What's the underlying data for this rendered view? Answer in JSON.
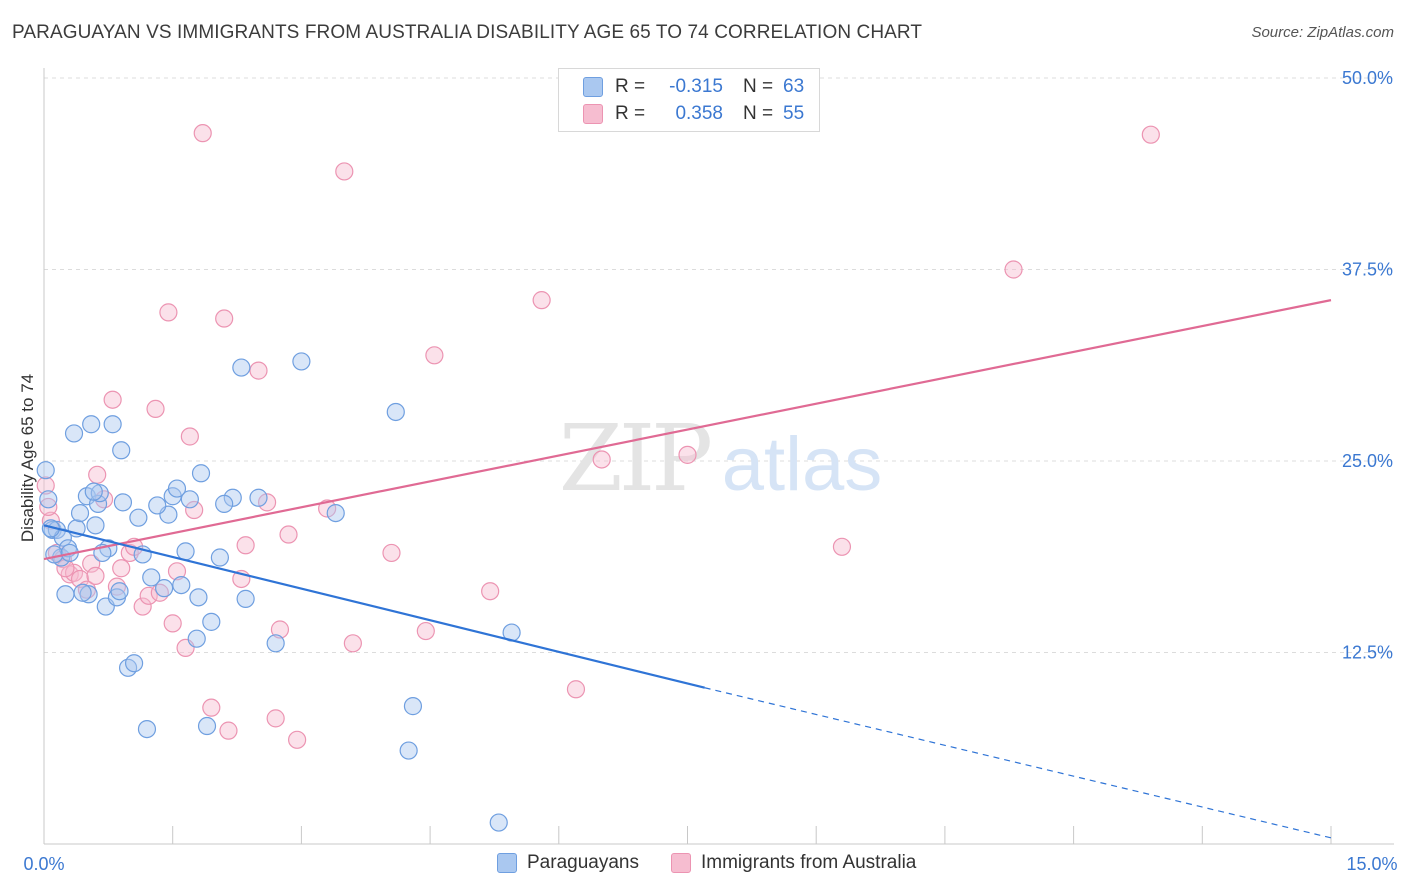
{
  "header": {
    "title": "PARAGUAYAN VS IMMIGRANTS FROM AUSTRALIA DISABILITY AGE 65 TO 74 CORRELATION CHART",
    "source": "Source: ZipAtlas.com"
  },
  "legend": {
    "r_label": "R =",
    "n_label": "N =",
    "series": [
      {
        "name": "Paraguayans",
        "r": "-0.315",
        "n": "63"
      },
      {
        "name": "Immigrants from Australia",
        "r": "0.358",
        "n": "55"
      }
    ]
  },
  "watermark": {
    "zip": "ZIP",
    "atlas": "atlas"
  },
  "colors": {
    "blue_fill": "#aac8f0",
    "blue_stroke": "#6f9fe0",
    "blue_line": "#2f74d6",
    "pink_fill": "#f6bdd0",
    "pink_stroke": "#ec94b2",
    "pink_line": "#e06a94",
    "axis_text": "#3b78d1",
    "grid": "#dcdcdc"
  },
  "chart_data": {
    "type": "scatter",
    "title": "PARAGUAYAN VS IMMIGRANTS FROM AUSTRALIA DISABILITY AGE 65 TO 74 CORRELATION CHART",
    "xlabel": "",
    "ylabel": "Disability Age 65 to 74",
    "xlim": [
      0,
      15
    ],
    "ylim": [
      0,
      50
    ],
    "x_tick_labels": [
      "0.0%",
      "15.0%"
    ],
    "y_ticks": [
      12.5,
      25.0,
      37.5,
      50.0
    ],
    "y_tick_labels": [
      "12.5%",
      "25.0%",
      "37.5%",
      "50.0%"
    ],
    "grid": true,
    "series": [
      {
        "name": "Paraguayans",
        "points": [
          [
            0.02,
            24.4
          ],
          [
            0.05,
            22.5
          ],
          [
            0.1,
            20.5
          ],
          [
            0.15,
            20.5
          ],
          [
            0.2,
            18.7
          ],
          [
            0.22,
            20.0
          ],
          [
            0.25,
            16.3
          ],
          [
            0.28,
            19.3
          ],
          [
            0.35,
            26.8
          ],
          [
            0.38,
            20.6
          ],
          [
            0.42,
            21.6
          ],
          [
            0.5,
            22.7
          ],
          [
            0.52,
            16.3
          ],
          [
            0.55,
            27.4
          ],
          [
            0.6,
            20.8
          ],
          [
            0.63,
            22.2
          ],
          [
            0.65,
            22.9
          ],
          [
            0.72,
            15.5
          ],
          [
            0.75,
            19.3
          ],
          [
            0.8,
            27.4
          ],
          [
            0.85,
            16.1
          ],
          [
            0.9,
            25.7
          ],
          [
            0.92,
            22.3
          ],
          [
            0.98,
            11.5
          ],
          [
            1.05,
            11.8
          ],
          [
            1.1,
            21.3
          ],
          [
            1.2,
            7.5
          ],
          [
            1.25,
            17.4
          ],
          [
            1.4,
            16.7
          ],
          [
            1.45,
            21.5
          ],
          [
            1.5,
            22.7
          ],
          [
            1.55,
            23.2
          ],
          [
            1.6,
            16.9
          ],
          [
            1.65,
            19.1
          ],
          [
            1.7,
            22.5
          ],
          [
            1.78,
            13.4
          ],
          [
            1.8,
            16.1
          ],
          [
            1.83,
            24.2
          ],
          [
            1.9,
            7.7
          ],
          [
            1.95,
            14.5
          ],
          [
            2.05,
            18.7
          ],
          [
            2.2,
            22.6
          ],
          [
            2.3,
            31.1
          ],
          [
            2.35,
            16.0
          ],
          [
            2.5,
            22.6
          ],
          [
            2.7,
            13.1
          ],
          [
            3.0,
            31.5
          ],
          [
            3.4,
            21.6
          ],
          [
            4.1,
            28.2
          ],
          [
            4.25,
            6.1
          ],
          [
            4.3,
            9.0
          ],
          [
            5.3,
            1.4
          ],
          [
            5.45,
            13.8
          ],
          [
            0.08,
            20.6
          ],
          [
            0.12,
            18.9
          ],
          [
            0.45,
            16.4
          ],
          [
            0.68,
            19.0
          ],
          [
            0.88,
            16.5
          ],
          [
            1.15,
            18.9
          ],
          [
            1.32,
            22.1
          ],
          [
            2.1,
            22.2
          ],
          [
            0.3,
            19.0
          ],
          [
            0.58,
            23.0
          ]
        ],
        "trend": {
          "x_start": 0,
          "y_start": 20.8,
          "x_solid_end": 7.7,
          "y_solid_end": 10.2,
          "x_dash_end": 15.0,
          "y_dash_end": 0.4
        }
      },
      {
        "name": "Immigrants from Australia",
        "points": [
          [
            0.02,
            23.4
          ],
          [
            0.08,
            21.1
          ],
          [
            0.15,
            19.0
          ],
          [
            0.22,
            18.6
          ],
          [
            0.3,
            17.6
          ],
          [
            0.35,
            17.7
          ],
          [
            0.42,
            17.3
          ],
          [
            0.5,
            16.6
          ],
          [
            0.55,
            18.3
          ],
          [
            0.62,
            24.1
          ],
          [
            0.7,
            22.5
          ],
          [
            0.8,
            29.0
          ],
          [
            0.9,
            18.0
          ],
          [
            1.0,
            19.0
          ],
          [
            1.05,
            19.4
          ],
          [
            1.15,
            15.5
          ],
          [
            1.22,
            16.2
          ],
          [
            1.3,
            28.4
          ],
          [
            1.45,
            34.7
          ],
          [
            1.5,
            14.4
          ],
          [
            1.55,
            17.8
          ],
          [
            1.65,
            12.8
          ],
          [
            1.7,
            26.6
          ],
          [
            1.85,
            46.4
          ],
          [
            1.95,
            8.9
          ],
          [
            2.1,
            34.3
          ],
          [
            2.15,
            7.4
          ],
          [
            2.3,
            17.3
          ],
          [
            2.35,
            19.5
          ],
          [
            2.5,
            30.9
          ],
          [
            2.7,
            8.2
          ],
          [
            2.75,
            14.0
          ],
          [
            2.85,
            20.2
          ],
          [
            2.95,
            6.8
          ],
          [
            3.3,
            21.9
          ],
          [
            3.5,
            43.9
          ],
          [
            3.6,
            13.1
          ],
          [
            4.05,
            19.0
          ],
          [
            4.45,
            13.9
          ],
          [
            4.55,
            31.9
          ],
          [
            5.2,
            16.5
          ],
          [
            5.8,
            35.5
          ],
          [
            6.2,
            10.1
          ],
          [
            6.5,
            25.1
          ],
          [
            7.5,
            25.4
          ],
          [
            9.3,
            19.4
          ],
          [
            11.3,
            37.5
          ],
          [
            12.9,
            46.3
          ],
          [
            0.05,
            22.0
          ],
          [
            0.25,
            18.0
          ],
          [
            0.6,
            17.5
          ],
          [
            0.85,
            16.8
          ],
          [
            1.35,
            16.4
          ],
          [
            1.75,
            21.8
          ],
          [
            2.6,
            22.3
          ]
        ],
        "trend": {
          "x_start": 0,
          "y_start": 18.6,
          "x_end": 15.0,
          "y_end": 35.5
        }
      }
    ]
  }
}
